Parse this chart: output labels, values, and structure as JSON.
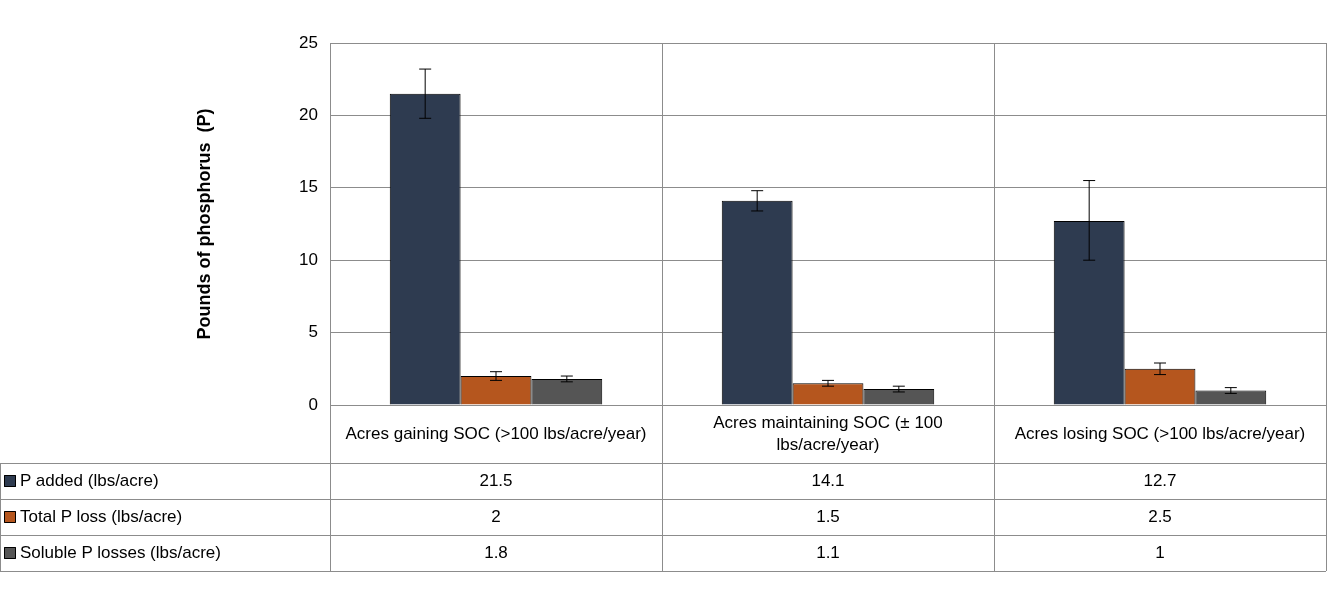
{
  "chart_data": {
    "type": "bar",
    "ylabel": "Pounds of phosphorus  (P)",
    "categories": [
      "Acres gaining SOC (>100 lbs/acre/year)",
      "Acres maintaining SOC (± 100 lbs/acre/year)",
      "Acres losing SOC (>100 lbs/acre/year)"
    ],
    "series": [
      {
        "name": "P added (lbs/acre)",
        "color": "#2e3b50",
        "values": [
          21.5,
          14.1,
          12.7
        ],
        "errors": [
          [
            19.8,
            23.2
          ],
          [
            13.4,
            14.8
          ],
          [
            10,
            15.5
          ]
        ]
      },
      {
        "name": "Total P loss (lbs/acre)",
        "color": "#b5561e",
        "values": [
          2,
          1.5,
          2.5
        ],
        "errors": [
          [
            1.7,
            2.3
          ],
          [
            1.3,
            1.7
          ],
          [
            2.1,
            2.9
          ]
        ]
      },
      {
        "name": "Soluble P losses (lbs/acre)",
        "color": "#555555",
        "values": [
          1.8,
          1.1,
          1
        ],
        "errors": [
          [
            1.6,
            2.0
          ],
          [
            0.9,
            1.3
          ],
          [
            0.8,
            1.2
          ]
        ]
      }
    ],
    "ylim": [
      0,
      25
    ],
    "yticks": [
      0,
      5,
      10,
      15,
      20,
      25
    ],
    "grid": "y",
    "data_labels": true,
    "legend": "bottom"
  }
}
